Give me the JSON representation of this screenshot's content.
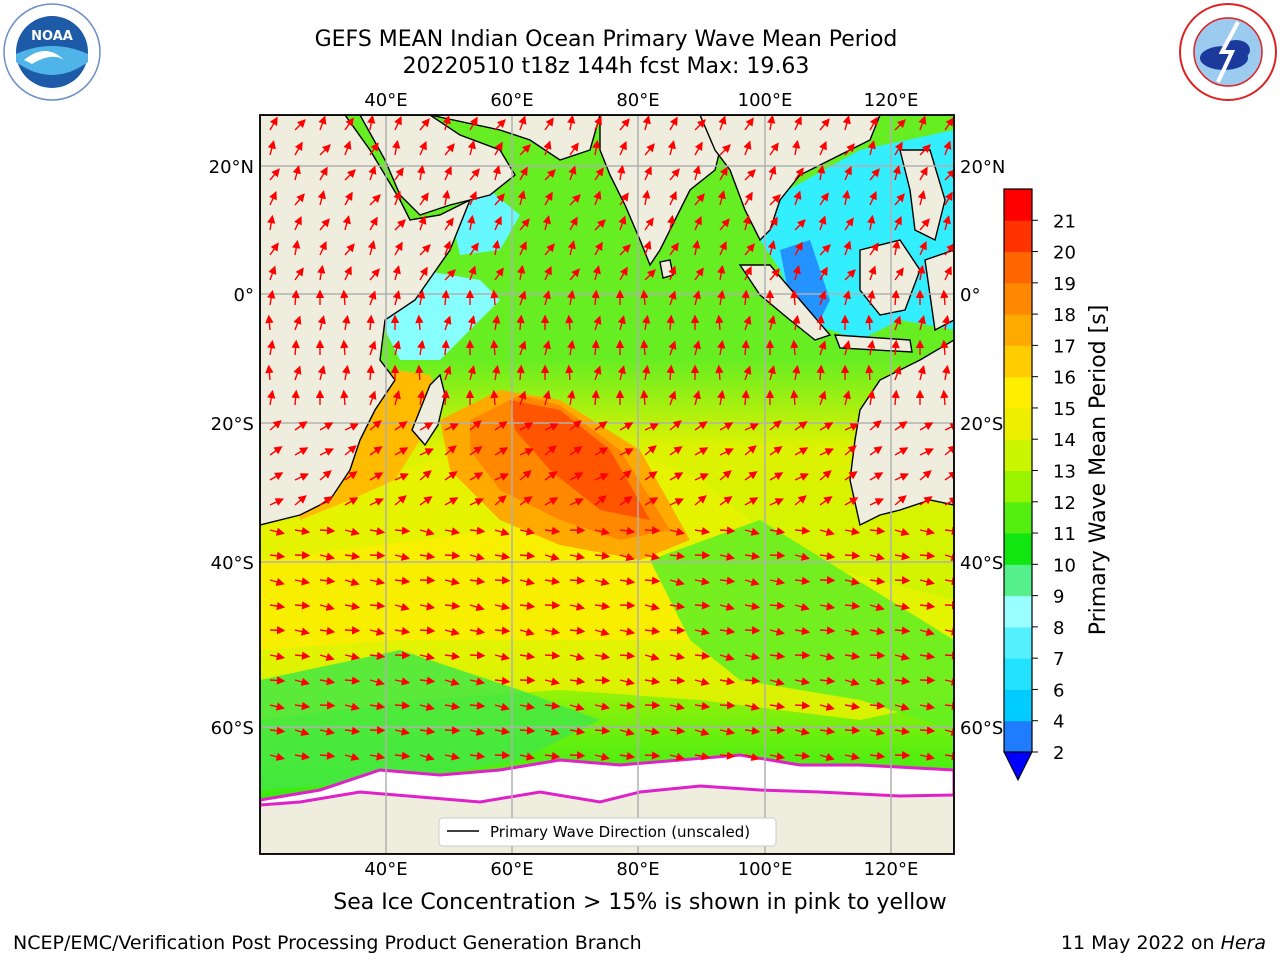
{
  "title": {
    "line1": "GEFS MEAN Indian Ocean Primary Wave Mean Period",
    "line2": "20220510 t18z 144h fcst   Max: 19.63"
  },
  "logos": {
    "left": "NOAA",
    "right": "NATIONAL WEATHER SERVICE"
  },
  "map": {
    "lon_ticks": [
      "40°E",
      "60°E",
      "80°E",
      "100°E",
      "120°E"
    ],
    "lat_ticks": [
      "20°N",
      "0°",
      "20°S",
      "40°S",
      "60°S"
    ],
    "legend_label": "Primary Wave Direction (unscaled)",
    "arrow_color": "#ff0000",
    "land_color": "#efeede",
    "ice_color": "#ffffff"
  },
  "colorbar": {
    "label": "Primary Wave Mean Period [s]",
    "tick_labels": [
      "2",
      "4",
      "6",
      "7",
      "8",
      "9",
      "10",
      "11",
      "12",
      "13",
      "14",
      "15",
      "16",
      "17",
      "18",
      "19",
      "20",
      "21"
    ],
    "colors": [
      "#1f7cff",
      "#00ccff",
      "#22e2ff",
      "#55f0ff",
      "#99ffff",
      "#55f08c",
      "#11e611",
      "#55ee11",
      "#99f400",
      "#ccf500",
      "#eeee00",
      "#ffee00",
      "#ffcc00",
      "#ffaa00",
      "#ff8800",
      "#ff6600",
      "#ff3300",
      "#ff0000"
    ],
    "under_color": "#0000ff"
  },
  "footer": {
    "ice_note": "Sea Ice Concentration > 15% is shown in pink to yellow",
    "credit": "NCEP/EMC/Verification Post Processing Product Generation Branch",
    "date": "11 May 2022 on",
    "machine": "Hera"
  }
}
